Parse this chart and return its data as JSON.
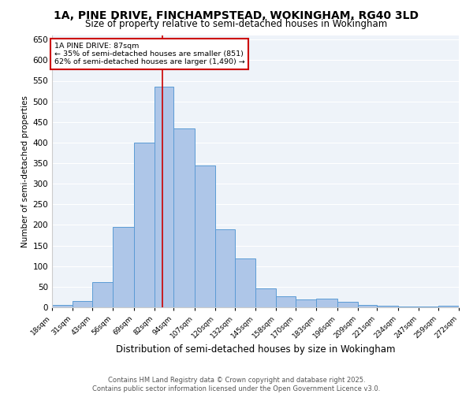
{
  "title_line1": "1A, PINE DRIVE, FINCHAMPSTEAD, WOKINGHAM, RG40 3LD",
  "title_line2": "Size of property relative to semi-detached houses in Wokingham",
  "xlabel": "Distribution of semi-detached houses by size in Wokingham",
  "ylabel": "Number of semi-detached properties",
  "footnote": "Contains HM Land Registry data © Crown copyright and database right 2025.\nContains public sector information licensed under the Open Government Licence v3.0.",
  "bin_labels": [
    "18sqm",
    "31sqm",
    "43sqm",
    "56sqm",
    "69sqm",
    "82sqm",
    "94sqm",
    "107sqm",
    "120sqm",
    "132sqm",
    "145sqm",
    "158sqm",
    "170sqm",
    "183sqm",
    "196sqm",
    "209sqm",
    "221sqm",
    "234sqm",
    "247sqm",
    "259sqm",
    "272sqm"
  ],
  "bar_values": [
    5,
    15,
    62,
    196,
    400,
    535,
    435,
    345,
    190,
    118,
    45,
    27,
    20,
    21,
    13,
    5,
    3,
    1,
    1,
    4
  ],
  "bar_color": "#aec6e8",
  "bar_edge_color": "#5b9bd5",
  "pct_smaller": 35,
  "n_smaller": 851,
  "pct_larger": 62,
  "n_larger": 1490,
  "vline_color": "#cc0000",
  "annotation_box_color": "#cc0000",
  "ylim": [
    0,
    660
  ],
  "yticks": [
    0,
    50,
    100,
    150,
    200,
    250,
    300,
    350,
    400,
    450,
    500,
    550,
    600,
    650
  ],
  "bg_color": "#eef3f9",
  "grid_color": "#ffffff",
  "fig_bg_color": "#ffffff",
  "bin_edges": [
    18,
    31,
    43,
    56,
    69,
    82,
    94,
    107,
    120,
    132,
    145,
    158,
    170,
    183,
    196,
    209,
    221,
    234,
    247,
    259,
    272
  ],
  "vline_x": 87
}
